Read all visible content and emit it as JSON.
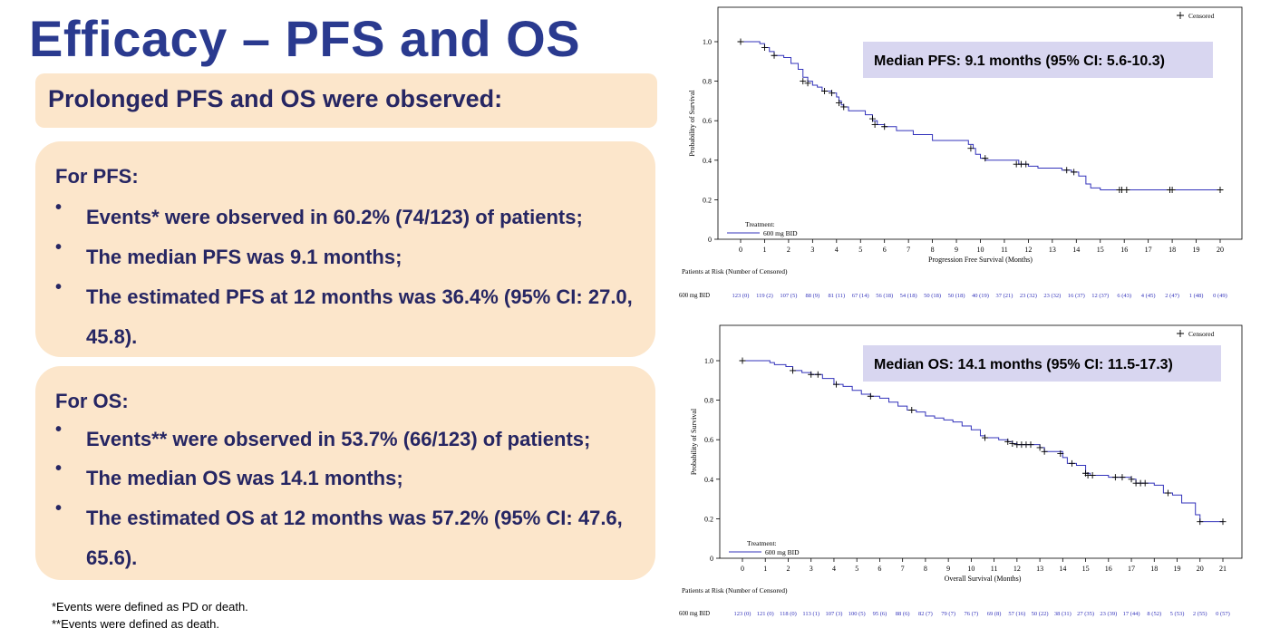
{
  "slide": {
    "title": "Efficacy – PFS and OS",
    "subtitle": "Prolonged PFS and OS were observed:"
  },
  "pfs_card": {
    "heading": "For PFS:",
    "bullets": [
      "Events* were observed in 60.2% (74/123) of patients;",
      "The median PFS was 9.1 months;",
      "The estimated PFS at 12 months was 36.4% (95% CI: 27.0, 45.8)."
    ]
  },
  "os_card": {
    "heading": "For OS:",
    "bullets": [
      "Events** were observed in 53.7% (66/123) of patients;",
      "The median OS was 14.1 months;",
      "The estimated OS at 12 months was 57.2% (95% CI: 47.6, 65.6)."
    ]
  },
  "footnotes": [
    "*Events were defined as PD or death.",
    "**Events were defined as death."
  ],
  "colors": {
    "title": "#2a3a8f",
    "card_bg": "#fce6cb",
    "curve": "#3333bb",
    "median_box": "#d8d6f0"
  },
  "chart_data": [
    {
      "type": "line",
      "title": "",
      "xlabel": "Progression Free Survival (Months)",
      "ylabel": "Probability of Survival",
      "xlim": [
        0,
        20
      ],
      "ylim": [
        0,
        1.0
      ],
      "x_ticks": [
        "0",
        "1",
        "2",
        "3",
        "4",
        "5",
        "6",
        "7",
        "8",
        "9",
        "10",
        "11",
        "12",
        "13",
        "14",
        "15",
        "16",
        "17",
        "18",
        "19",
        "20"
      ],
      "y_ticks": [
        "0",
        "0.2",
        "0.4",
        "0.6",
        "0.8",
        "1.0"
      ],
      "legend": {
        "censored_label": "Censored",
        "treatment_label": "Treatment:",
        "series_label": "600 mg BID"
      },
      "median_label": "Median PFS: 9.1 months (95% CI: 5.6-10.3)",
      "series": [
        {
          "name": "600 mg BID",
          "steps": [
            [
              0,
              1.0
            ],
            [
              0.8,
              0.99
            ],
            [
              1.0,
              0.97
            ],
            [
              1.2,
              0.95
            ],
            [
              1.4,
              0.93
            ],
            [
              1.8,
              0.92
            ],
            [
              2.1,
              0.89
            ],
            [
              2.4,
              0.86
            ],
            [
              2.6,
              0.82
            ],
            [
              2.8,
              0.8
            ],
            [
              3.0,
              0.78
            ],
            [
              3.2,
              0.77
            ],
            [
              3.4,
              0.75
            ],
            [
              3.8,
              0.74
            ],
            [
              4.0,
              0.72
            ],
            [
              4.1,
              0.7
            ],
            [
              4.2,
              0.68
            ],
            [
              4.3,
              0.67
            ],
            [
              4.5,
              0.65
            ],
            [
              5.2,
              0.63
            ],
            [
              5.5,
              0.6
            ],
            [
              5.7,
              0.58
            ],
            [
              6.0,
              0.57
            ],
            [
              6.5,
              0.55
            ],
            [
              7.2,
              0.53
            ],
            [
              8.0,
              0.5
            ],
            [
              9.5,
              0.48
            ],
            [
              9.7,
              0.46
            ],
            [
              9.8,
              0.43
            ],
            [
              10.0,
              0.41
            ],
            [
              10.2,
              0.4
            ],
            [
              11.6,
              0.38
            ],
            [
              12.0,
              0.37
            ],
            [
              12.4,
              0.36
            ],
            [
              13.4,
              0.35
            ],
            [
              13.8,
              0.34
            ],
            [
              14.1,
              0.32
            ],
            [
              14.4,
              0.28
            ],
            [
              14.6,
              0.26
            ],
            [
              15.0,
              0.25
            ],
            [
              20.0,
              0.25
            ]
          ],
          "censored": [
            [
              0,
              1.0
            ],
            [
              1.0,
              0.97
            ],
            [
              1.4,
              0.93
            ],
            [
              2.6,
              0.8
            ],
            [
              2.8,
              0.79
            ],
            [
              3.5,
              0.75
            ],
            [
              3.8,
              0.74
            ],
            [
              4.1,
              0.69
            ],
            [
              4.3,
              0.67
            ],
            [
              5.5,
              0.61
            ],
            [
              5.6,
              0.58
            ],
            [
              6.0,
              0.57
            ],
            [
              9.6,
              0.46
            ],
            [
              10.2,
              0.41
            ],
            [
              11.5,
              0.38
            ],
            [
              11.7,
              0.38
            ],
            [
              11.9,
              0.38
            ],
            [
              13.6,
              0.35
            ],
            [
              13.9,
              0.34
            ],
            [
              15.8,
              0.25
            ],
            [
              15.9,
              0.25
            ],
            [
              16.1,
              0.25
            ],
            [
              17.9,
              0.25
            ],
            [
              18.0,
              0.25
            ],
            [
              20.0,
              0.25
            ]
          ]
        }
      ],
      "at_risk_title": "Patients at Risk (Number of Censored)",
      "at_risk_row_label": "600 mg BID",
      "at_risk": [
        "123 (0)",
        "119 (2)",
        "107 (5)",
        "88 (9)",
        "81 (11)",
        "67 (14)",
        "56 (18)",
        "54 (18)",
        "50 (18)",
        "50 (18)",
        "40 (19)",
        "37 (21)",
        "23 (32)",
        "23 (32)",
        "16 (37)",
        "12 (37)",
        "6 (43)",
        "4 (45)",
        "2 (47)",
        "1 (48)",
        "0 (49)"
      ]
    },
    {
      "type": "line",
      "title": "",
      "xlabel": "Overall Survival (Months)",
      "ylabel": "Probability of Survival",
      "xlim": [
        0,
        21
      ],
      "ylim": [
        0,
        1.0
      ],
      "x_ticks": [
        "0",
        "1",
        "2",
        "3",
        "4",
        "5",
        "6",
        "7",
        "8",
        "9",
        "10",
        "11",
        "12",
        "13",
        "14",
        "15",
        "16",
        "17",
        "18",
        "19",
        "20",
        "21"
      ],
      "y_ticks": [
        "0",
        "0.2",
        "0.4",
        "0.6",
        "0.8",
        "1.0"
      ],
      "legend": {
        "censored_label": "Censored",
        "treatment_label": "Treatment:",
        "series_label": "600 mg BID"
      },
      "median_label": "Median OS: 14.1 months (95% CI: 11.5-17.3)",
      "series": [
        {
          "name": "600 mg BID",
          "steps": [
            [
              0,
              1.0
            ],
            [
              1.2,
              0.99
            ],
            [
              1.4,
              0.98
            ],
            [
              1.9,
              0.97
            ],
            [
              2.2,
              0.95
            ],
            [
              2.6,
              0.94
            ],
            [
              3.0,
              0.93
            ],
            [
              3.5,
              0.91
            ],
            [
              4.0,
              0.88
            ],
            [
              4.4,
              0.87
            ],
            [
              4.8,
              0.85
            ],
            [
              5.2,
              0.83
            ],
            [
              5.6,
              0.82
            ],
            [
              6.0,
              0.81
            ],
            [
              6.4,
              0.79
            ],
            [
              6.8,
              0.77
            ],
            [
              7.2,
              0.75
            ],
            [
              7.6,
              0.74
            ],
            [
              8.0,
              0.72
            ],
            [
              8.4,
              0.71
            ],
            [
              8.8,
              0.7
            ],
            [
              9.2,
              0.69
            ],
            [
              9.6,
              0.67
            ],
            [
              10.0,
              0.65
            ],
            [
              10.4,
              0.62
            ],
            [
              10.6,
              0.61
            ],
            [
              11.2,
              0.6
            ],
            [
              11.6,
              0.59
            ],
            [
              11.8,
              0.58
            ],
            [
              12.0,
              0.575
            ],
            [
              13.0,
              0.56
            ],
            [
              13.2,
              0.54
            ],
            [
              14.0,
              0.51
            ],
            [
              14.2,
              0.48
            ],
            [
              14.6,
              0.47
            ],
            [
              15.0,
              0.43
            ],
            [
              15.2,
              0.42
            ],
            [
              16.0,
              0.41
            ],
            [
              17.0,
              0.4
            ],
            [
              17.2,
              0.38
            ],
            [
              18.0,
              0.37
            ],
            [
              18.4,
              0.33
            ],
            [
              18.8,
              0.32
            ],
            [
              19.2,
              0.28
            ],
            [
              19.8,
              0.22
            ],
            [
              20.0,
              0.185
            ],
            [
              21.0,
              0.185
            ]
          ],
          "censored": [
            [
              0,
              1.0
            ],
            [
              2.2,
              0.95
            ],
            [
              3.0,
              0.93
            ],
            [
              3.3,
              0.93
            ],
            [
              4.1,
              0.88
            ],
            [
              5.6,
              0.82
            ],
            [
              7.4,
              0.75
            ],
            [
              10.6,
              0.61
            ],
            [
              11.6,
              0.59
            ],
            [
              11.8,
              0.58
            ],
            [
              12.0,
              0.575
            ],
            [
              12.2,
              0.575
            ],
            [
              12.4,
              0.575
            ],
            [
              12.6,
              0.575
            ],
            [
              13.0,
              0.56
            ],
            [
              13.2,
              0.54
            ],
            [
              13.9,
              0.53
            ],
            [
              14.4,
              0.48
            ],
            [
              15.0,
              0.43
            ],
            [
              15.1,
              0.42
            ],
            [
              15.3,
              0.42
            ],
            [
              16.3,
              0.41
            ],
            [
              16.6,
              0.41
            ],
            [
              17.0,
              0.4
            ],
            [
              17.2,
              0.38
            ],
            [
              17.4,
              0.38
            ],
            [
              17.6,
              0.38
            ],
            [
              18.6,
              0.33
            ],
            [
              20.0,
              0.185
            ],
            [
              21.0,
              0.185
            ]
          ]
        }
      ],
      "at_risk_title": "Patients at Risk (Number of Censored)",
      "at_risk_row_label": "600 mg BID",
      "at_risk": [
        "123 (0)",
        "121 (0)",
        "118 (0)",
        "113 (1)",
        "107 (3)",
        "100 (5)",
        "95 (6)",
        "88 (6)",
        "82 (7)",
        "79 (7)",
        "76 (7)",
        "69 (8)",
        "57 (16)",
        "50 (22)",
        "38 (31)",
        "27 (35)",
        "23 (39)",
        "17 (44)",
        "8 (52)",
        "5 (53)",
        "2 (55)",
        "0 (57)"
      ]
    }
  ]
}
